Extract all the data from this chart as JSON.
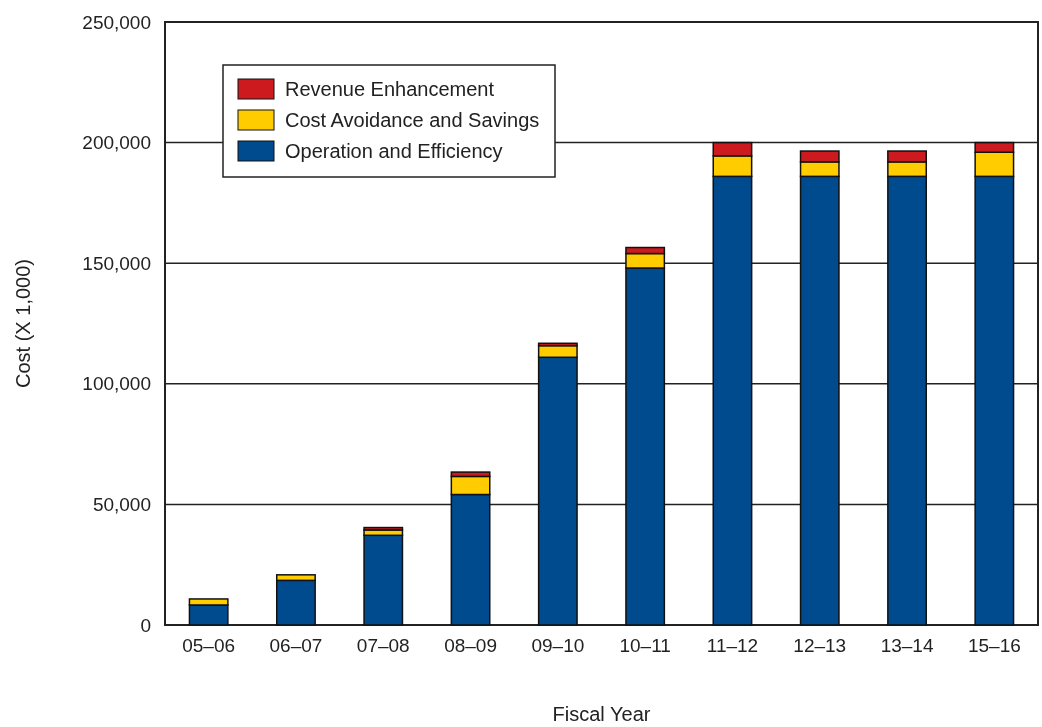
{
  "chart_data": {
    "type": "bar",
    "stacked": true,
    "xlabel": "Fiscal Year",
    "ylabel": "Cost (X 1,000)",
    "categories": [
      "05–06",
      "06–07",
      "07–08",
      "08–09",
      "09–10",
      "10–11",
      "11–12",
      "12–13",
      "13–14",
      "15–16"
    ],
    "series": [
      {
        "name": "Operation and Efficiency",
        "color": "#004b8d",
        "values": [
          8300,
          18500,
          37200,
          54100,
          111000,
          148000,
          186000,
          186000,
          186000,
          186000
        ]
      },
      {
        "name": "Cost Avoidance and Savings",
        "color": "#ffcc00",
        "values": [
          2500,
          2300,
          2200,
          7500,
          4800,
          6000,
          8500,
          6000,
          6000,
          10000
        ]
      },
      {
        "name": "Revenue Enhancement",
        "color": "#cc1a1f",
        "values": [
          0,
          0,
          1000,
          1800,
          1000,
          2500,
          5500,
          4500,
          4500,
          4000
        ]
      }
    ],
    "ylim": [
      0,
      250000
    ],
    "yticks": [
      {
        "value": 0,
        "label": "0"
      },
      {
        "value": 50000,
        "label": "50,000"
      },
      {
        "value": 100000,
        "label": "100,000"
      },
      {
        "value": 150000,
        "label": "150,000"
      },
      {
        "value": 200000,
        "label": "200,000"
      },
      {
        "value": 250000,
        "label": "250,000"
      }
    ],
    "grid": "y",
    "legend": "top left"
  }
}
